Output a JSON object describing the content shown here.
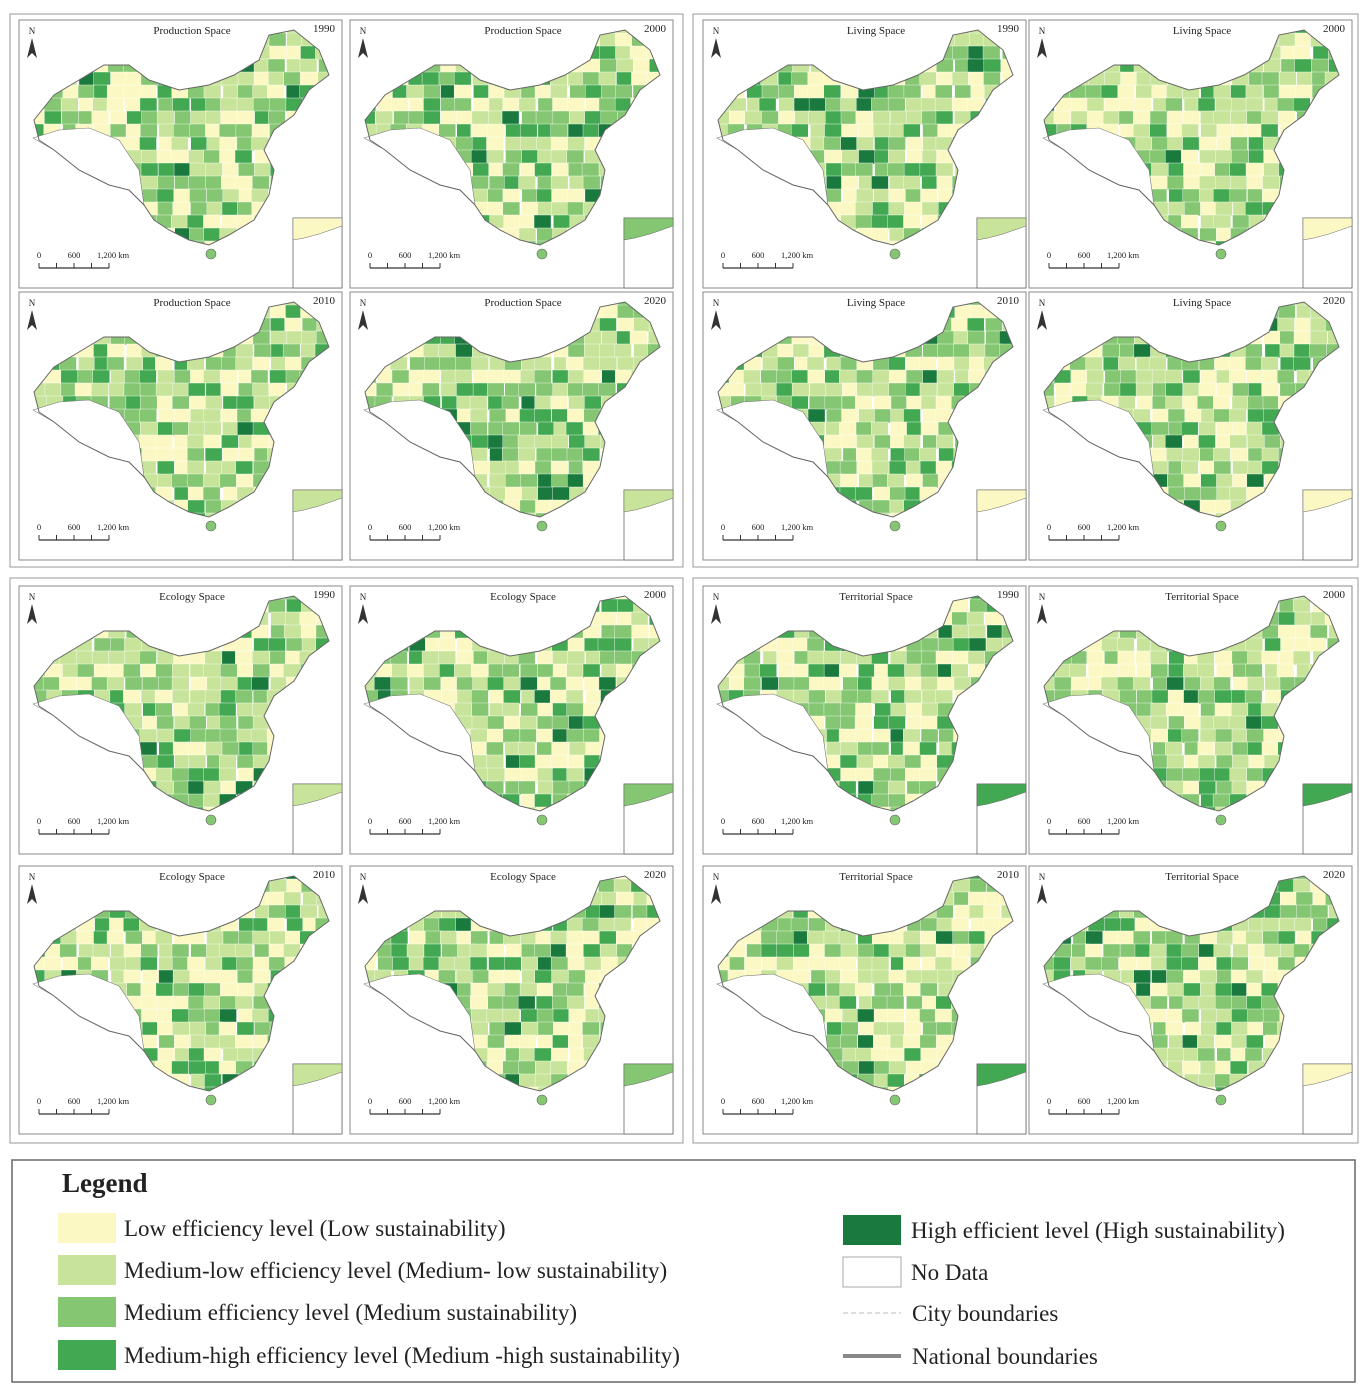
{
  "groups": [
    {
      "title": "Production Space",
      "years": [
        "1990",
        "2000",
        "2010",
        "2020"
      ]
    },
    {
      "title": "Living Space",
      "years": [
        "1990",
        "2000",
        "2010",
        "2020"
      ]
    },
    {
      "title": "Ecology Space",
      "years": [
        "1990",
        "2000",
        "2010",
        "2020"
      ]
    },
    {
      "title": "Territorial Space",
      "years": [
        "1990",
        "2000",
        "2010",
        "2020"
      ]
    }
  ],
  "north": "N",
  "scale_labels": [
    "0",
    "600",
    "1,200 km"
  ],
  "legend": {
    "title": "Legend",
    "levels": [
      {
        "label": "Low efficiency level (Low sustainability)",
        "color": "#fcf8c4"
      },
      {
        "label": "Medium-low efficiency level (Medium- low sustainability)",
        "color": "#c8e49a"
      },
      {
        "label": "Medium efficiency level (Medium sustainability)",
        "color": "#84c671"
      },
      {
        "label": "Medium-high efficiency level (Medium -high sustainability)",
        "color": "#43a852"
      },
      {
        "label": "High efficient level (High sustainability)",
        "color": "#1a7a3e"
      },
      {
        "label": "No Data",
        "color": "#ffffff"
      }
    ],
    "lines": [
      {
        "label": "City boundaries"
      },
      {
        "label": "National boundaries"
      }
    ]
  }
}
